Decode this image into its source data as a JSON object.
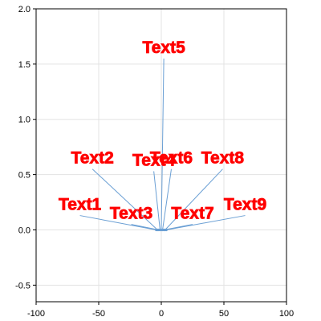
{
  "chart_data": {
    "type": "scatter",
    "title": "",
    "xlabel": "",
    "ylabel": "",
    "xlim": [
      -100,
      100
    ],
    "ylim": [
      -0.65,
      2.0
    ],
    "xticks": [
      -100,
      -50,
      0,
      50,
      100
    ],
    "yticks": [
      -0.5,
      0.0,
      0.5,
      1.0,
      1.5,
      2.0
    ],
    "xtick_labels": [
      "-100",
      "-50",
      "0",
      "50",
      "100"
    ],
    "ytick_labels": [
      "-0.5",
      "0.0",
      "0.5",
      "1.0",
      "1.5",
      "2.0"
    ],
    "grid": true,
    "colors": {
      "connector": "#6a9fd4",
      "label": "#ff0000",
      "grid": "#e3e3e3",
      "axis": "#000000"
    },
    "points": [
      {
        "x": -4,
        "y": 0
      },
      {
        "x": -3,
        "y": 0
      },
      {
        "x": -2,
        "y": 0
      },
      {
        "x": -1,
        "y": 0
      },
      {
        "x": 0,
        "y": 0
      },
      {
        "x": 1,
        "y": 0
      },
      {
        "x": 2,
        "y": 0
      },
      {
        "x": 3,
        "y": 0
      },
      {
        "x": 4,
        "y": 0
      }
    ],
    "annotations": [
      {
        "text": "Text1",
        "point": [
          -4,
          0
        ],
        "text_pos": [
          -65,
          0.13
        ]
      },
      {
        "text": "Text2",
        "point": [
          -3,
          0
        ],
        "text_pos": [
          -55,
          0.55
        ]
      },
      {
        "text": "Text3",
        "point": [
          -2,
          0
        ],
        "text_pos": [
          -24,
          0.05
        ]
      },
      {
        "text": "Text4",
        "point": [
          -1,
          0
        ],
        "text_pos": [
          -6,
          0.53
        ]
      },
      {
        "text": "Text5",
        "point": [
          0,
          0
        ],
        "text_pos": [
          2,
          1.55
        ]
      },
      {
        "text": "Text6",
        "point": [
          1,
          0
        ],
        "text_pos": [
          8,
          0.55
        ]
      },
      {
        "text": "Text7",
        "point": [
          2,
          0
        ],
        "text_pos": [
          25,
          0.05
        ]
      },
      {
        "text": "Text8",
        "point": [
          3,
          0
        ],
        "text_pos": [
          49,
          0.55
        ]
      },
      {
        "text": "Text9",
        "point": [
          4,
          0
        ],
        "text_pos": [
          67,
          0.13
        ]
      }
    ]
  }
}
